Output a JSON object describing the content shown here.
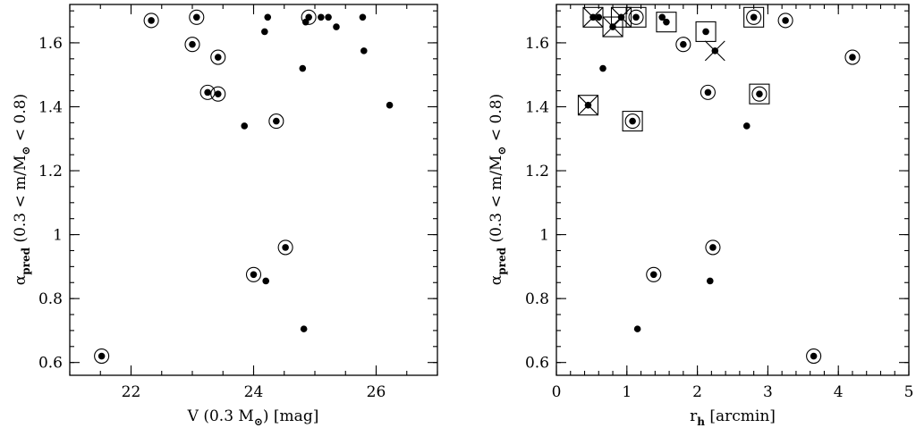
{
  "chart_data": [
    {
      "type": "scatter",
      "xlabel": "V (0.3 M⊙) [mag]",
      "ylabel": "αpred (0.3 < m/M⊙ < 0.8)",
      "xlim": [
        21,
        27
      ],
      "ylim": [
        0.56,
        1.72
      ],
      "x_ticks": [
        22,
        24,
        26
      ],
      "x_tick_labels": [
        "22",
        "24",
        "26"
      ],
      "y_ticks": [
        0.6,
        0.8,
        1.0,
        1.2,
        1.4,
        1.6
      ],
      "y_tick_labels": [
        "0.6",
        "0.8",
        "1",
        "1.2",
        "1.4",
        "1.6"
      ],
      "points": [
        {
          "x": 21.52,
          "y": 0.62,
          "marker": "ring"
        },
        {
          "x": 22.33,
          "y": 1.67,
          "marker": "ring"
        },
        {
          "x": 23.0,
          "y": 1.595,
          "marker": "ring"
        },
        {
          "x": 23.07,
          "y": 1.68,
          "marker": "ring"
        },
        {
          "x": 23.42,
          "y": 1.555,
          "marker": "ring"
        },
        {
          "x": 23.25,
          "y": 1.445,
          "marker": "ring"
        },
        {
          "x": 23.42,
          "y": 1.44,
          "marker": "ring"
        },
        {
          "x": 23.85,
          "y": 1.34,
          "marker": "dot"
        },
        {
          "x": 24.0,
          "y": 0.875,
          "marker": "ring"
        },
        {
          "x": 24.2,
          "y": 0.855,
          "marker": "dot"
        },
        {
          "x": 24.18,
          "y": 1.635,
          "marker": "dot"
        },
        {
          "x": 24.23,
          "y": 1.68,
          "marker": "dot"
        },
        {
          "x": 24.37,
          "y": 1.355,
          "marker": "ring"
        },
        {
          "x": 24.52,
          "y": 0.96,
          "marker": "ring"
        },
        {
          "x": 24.82,
          "y": 0.705,
          "marker": "dot"
        },
        {
          "x": 24.8,
          "y": 1.52,
          "marker": "dot"
        },
        {
          "x": 24.85,
          "y": 1.665,
          "marker": "dot"
        },
        {
          "x": 24.9,
          "y": 1.68,
          "marker": "ring"
        },
        {
          "x": 25.1,
          "y": 1.68,
          "marker": "dot"
        },
        {
          "x": 25.22,
          "y": 1.68,
          "marker": "dot"
        },
        {
          "x": 25.35,
          "y": 1.65,
          "marker": "dot"
        },
        {
          "x": 25.78,
          "y": 1.68,
          "marker": "dot"
        },
        {
          "x": 25.8,
          "y": 1.575,
          "marker": "dot"
        },
        {
          "x": 26.22,
          "y": 1.405,
          "marker": "dot"
        }
      ]
    },
    {
      "type": "scatter",
      "xlabel": "rh [arcmin]",
      "ylabel": "αpred (0.3 < m/M⊙ < 0.8)",
      "xlim": [
        0,
        5
      ],
      "ylim": [
        0.56,
        1.72
      ],
      "x_ticks": [
        0,
        1,
        2,
        3,
        4,
        5
      ],
      "x_tick_labels": [
        "0",
        "1",
        "2",
        "3",
        "4",
        "5"
      ],
      "y_ticks": [
        0.6,
        0.8,
        1.0,
        1.2,
        1.4,
        1.6
      ],
      "y_tick_labels": [
        "0.6",
        "0.8",
        "1",
        "1.2",
        "1.4",
        "1.6"
      ],
      "points": [
        {
          "x": 0.45,
          "y": 1.405,
          "marker": "boxcross"
        },
        {
          "x": 0.52,
          "y": 1.68,
          "marker": "boxcross"
        },
        {
          "x": 0.6,
          "y": 1.68,
          "marker": "dot"
        },
        {
          "x": 0.66,
          "y": 1.52,
          "marker": "dot"
        },
        {
          "x": 0.8,
          "y": 1.65,
          "marker": "boxcross"
        },
        {
          "x": 0.92,
          "y": 1.68,
          "marker": "boxcross"
        },
        {
          "x": 1.08,
          "y": 1.355,
          "marker": "boxring"
        },
        {
          "x": 1.13,
          "y": 1.68,
          "marker": "boxring"
        },
        {
          "x": 1.15,
          "y": 0.705,
          "marker": "dot"
        },
        {
          "x": 1.38,
          "y": 0.875,
          "marker": "ring"
        },
        {
          "x": 1.5,
          "y": 1.68,
          "marker": "dot"
        },
        {
          "x": 1.56,
          "y": 1.665,
          "marker": "boxdot"
        },
        {
          "x": 1.8,
          "y": 1.595,
          "marker": "ring"
        },
        {
          "x": 2.12,
          "y": 1.635,
          "marker": "boxdot"
        },
        {
          "x": 2.15,
          "y": 1.445,
          "marker": "ring"
        },
        {
          "x": 2.18,
          "y": 0.855,
          "marker": "dot"
        },
        {
          "x": 2.22,
          "y": 0.96,
          "marker": "ring"
        },
        {
          "x": 2.25,
          "y": 1.575,
          "marker": "crossdot"
        },
        {
          "x": 2.7,
          "y": 1.34,
          "marker": "dot"
        },
        {
          "x": 2.8,
          "y": 1.68,
          "marker": "boxring"
        },
        {
          "x": 2.88,
          "y": 1.44,
          "marker": "boxring"
        },
        {
          "x": 3.25,
          "y": 1.67,
          "marker": "ring"
        },
        {
          "x": 3.65,
          "y": 0.62,
          "marker": "ring"
        },
        {
          "x": 4.2,
          "y": 1.555,
          "marker": "ring"
        }
      ]
    }
  ]
}
